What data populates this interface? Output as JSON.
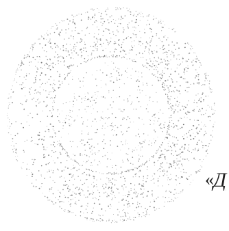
{
  "document": {
    "seal": {
      "kind": "faded round stamp (seal)",
      "illegible": true,
      "ink_color": "#5a5a5a"
    },
    "edge_fragment": {
      "quote_mark": "«",
      "first_letter": "Д"
    }
  }
}
